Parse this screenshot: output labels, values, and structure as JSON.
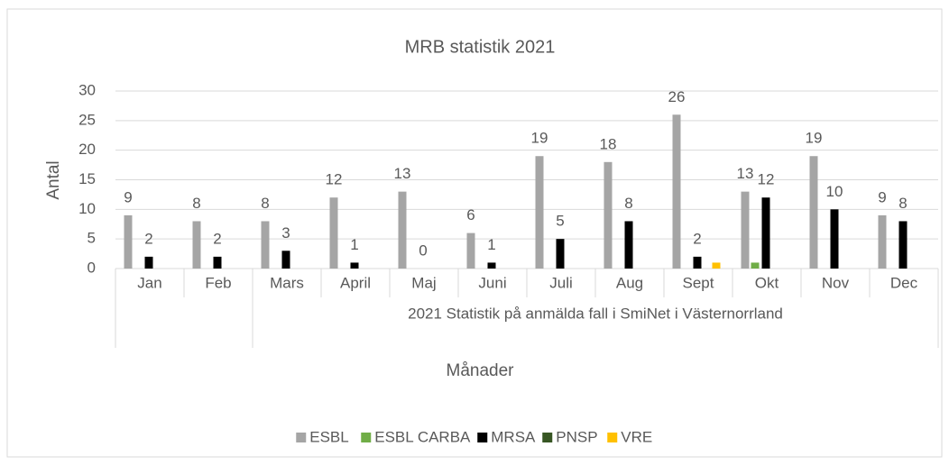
{
  "chart_data": {
    "type": "bar",
    "title": "MRB statistik 2021",
    "y_label": "Antal",
    "x_label": "Månader",
    "categories": [
      "Jan",
      "Feb",
      "Mars",
      "April",
      "Maj",
      "Juni",
      "Juli",
      "Aug",
      "Sept",
      "Okt",
      "Nov",
      "Dec"
    ],
    "groups": [
      {
        "label": "2021 Statistik på anmälda fall i SmiNet i Västernorrland",
        "start": 2,
        "end": 11
      }
    ],
    "series": [
      {
        "name": "ESBL",
        "color": "#a5a5a5",
        "data_labels": true,
        "values": [
          9,
          8,
          8,
          12,
          13,
          6,
          19,
          18,
          26,
          13,
          19,
          9
        ]
      },
      {
        "name": "ESBL CARBA",
        "color": "#70ad47",
        "data_labels": false,
        "values": [
          0,
          0,
          0,
          0,
          0,
          0,
          0,
          0,
          0,
          1,
          0,
          0
        ]
      },
      {
        "name": "MRSA",
        "color": "#000000",
        "data_labels": true,
        "values": [
          2,
          2,
          3,
          1,
          0,
          1,
          5,
          8,
          2,
          12,
          10,
          8
        ]
      },
      {
        "name": "PNSP",
        "color": "#375623",
        "data_labels": false,
        "values": [
          0,
          0,
          0,
          0,
          0,
          0,
          0,
          0,
          0,
          0,
          0,
          0
        ]
      },
      {
        "name": "VRE",
        "color": "#ffc000",
        "data_labels": false,
        "values": [
          0,
          0,
          0,
          0,
          0,
          0,
          0,
          0,
          1,
          0,
          0,
          0
        ]
      }
    ],
    "ylim": [
      0,
      30
    ],
    "yticks": [
      0,
      5,
      10,
      15,
      20,
      25,
      30
    ],
    "grid": true,
    "legend": "bottom"
  }
}
